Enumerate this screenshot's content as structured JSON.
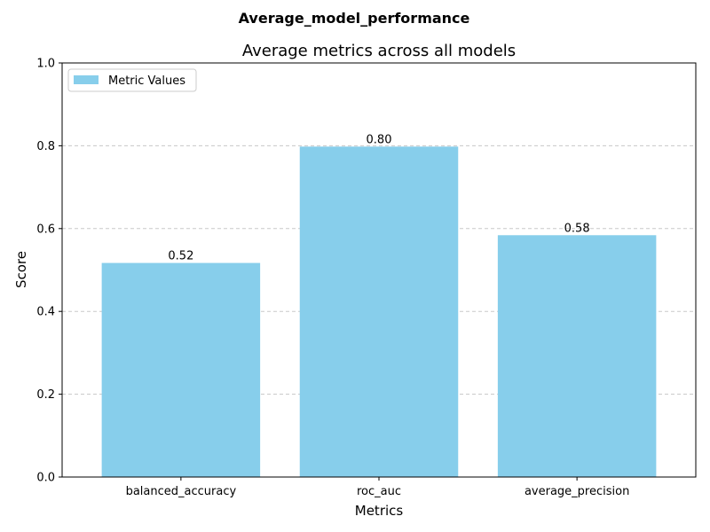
{
  "suptitle": "Average_model_performance",
  "chart_data": {
    "type": "bar",
    "title": "Average metrics across all models",
    "xlabel": "Metrics",
    "ylabel": "Score",
    "categories": [
      "balanced_accuracy",
      "roc_auc",
      "average_precision"
    ],
    "series": [
      {
        "name": "Metric Values",
        "values": [
          0.517,
          0.798,
          0.584
        ],
        "labels": [
          "0.52",
          "0.80",
          "0.58"
        ]
      }
    ],
    "ylim": [
      0,
      1.0
    ],
    "yticks": [
      "0.0",
      "0.2",
      "0.4",
      "0.6",
      "0.8",
      "1.0"
    ],
    "grid": "y-dashed",
    "legend_position": "top-left",
    "colors": {
      "bar": "#87ceeb",
      "grid": "#c8c8c8",
      "axis": "#000000"
    }
  }
}
